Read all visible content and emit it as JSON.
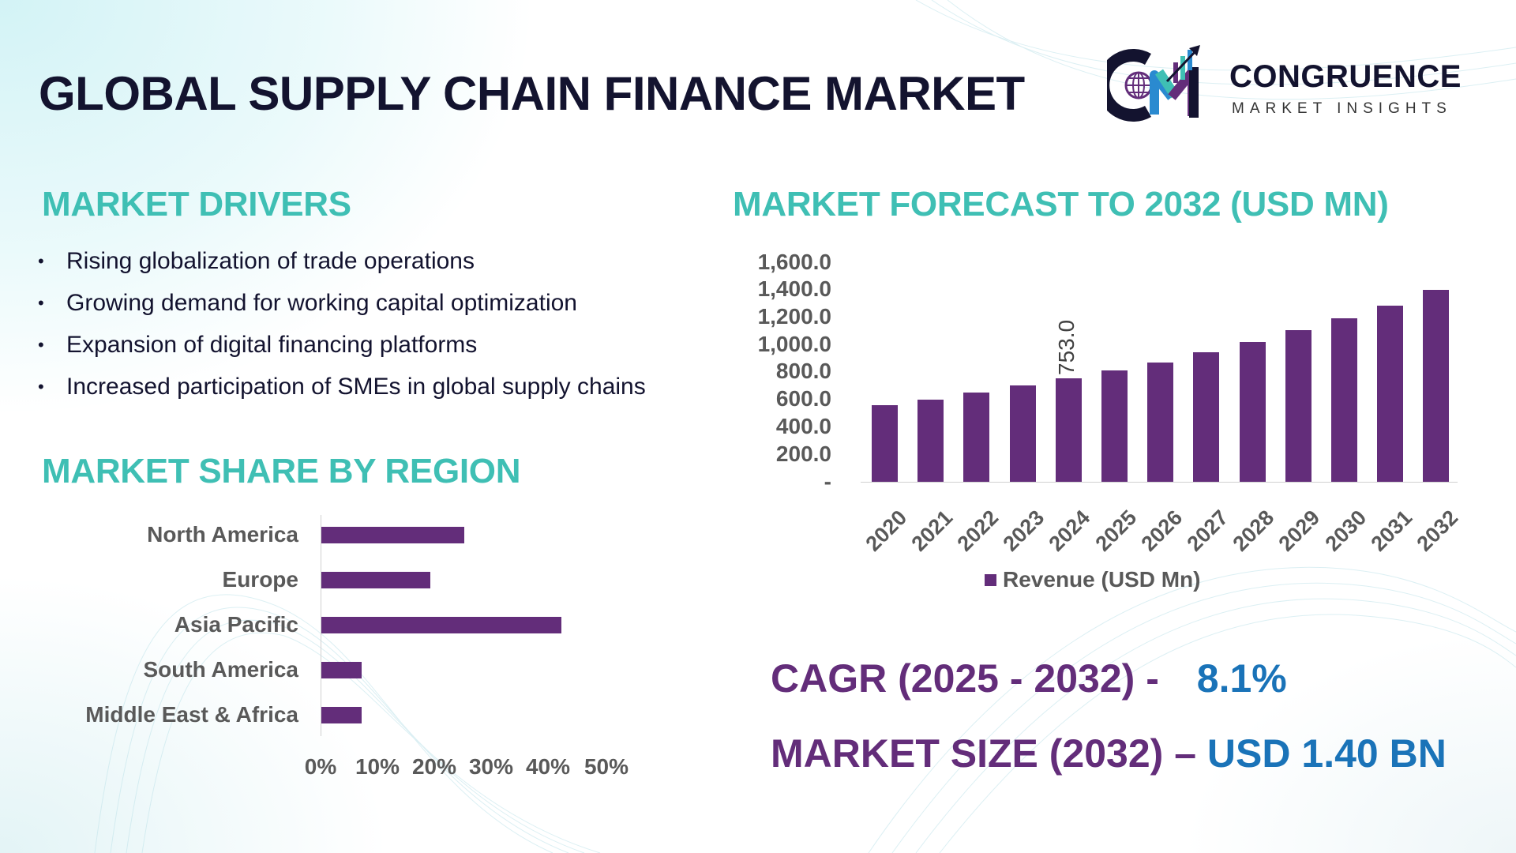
{
  "header": {
    "title": "GLOBAL SUPPLY CHAIN FINANCE MARKET",
    "logo": {
      "name": "CONGRUENCE",
      "subtitle": "MARKET INSIGHTS",
      "icon": "cm-globe-chart-logo-icon"
    }
  },
  "drivers": {
    "heading": "MARKET DRIVERS",
    "bullet": "•",
    "items": [
      "Rising globalization of trade operations",
      "Growing demand for working capital optimization",
      "Expansion of digital financing platforms",
      "Increased participation of SMEs in global supply chains"
    ]
  },
  "region": {
    "heading": "MARKET SHARE BY REGION"
  },
  "forecast": {
    "heading": "MARKET FORECAST TO 2032 (USD MN)"
  },
  "stats": {
    "cagr_label": "CAGR (2025 - 2032) -",
    "cagr_value": "8.1%",
    "size_label": "MARKET SIZE (2032) –",
    "size_value": "USD 1.40 BN"
  },
  "colors": {
    "bar": "#632d7a",
    "heading_teal": "#3fbfb4",
    "value_blue": "#1a73b8",
    "title_navy": "#13132f",
    "axis_text": "#595959"
  },
  "chart_data": [
    {
      "type": "bar",
      "title": "MARKET FORECAST TO 2032 (USD MN)",
      "categories": [
        "2020",
        "2021",
        "2022",
        "2023",
        "2024",
        "2025",
        "2026",
        "2027",
        "2028",
        "2029",
        "2030",
        "2031",
        "2032"
      ],
      "series": [
        {
          "name": "Revenue (USD Mn)",
          "values": [
            560,
            600,
            651,
            703,
            753,
            812,
            870,
            943,
            1017,
            1103,
            1189,
            1286,
            1400
          ]
        }
      ],
      "data_labels": [
        {
          "category": "2024",
          "label": "753.0"
        }
      ],
      "yticks": [
        "-",
        "200.0",
        "400.0",
        "600.0",
        "800.0",
        "1,000.0",
        "1,200.0",
        "1,400.0",
        "1,600.0"
      ],
      "ylim": [
        0,
        1600
      ],
      "xlabel": "",
      "ylabel": "",
      "legend": {
        "position": "bottom",
        "entries": [
          "Revenue (USD Mn)"
        ]
      },
      "grid": false
    },
    {
      "type": "bar",
      "orientation": "horizontal",
      "title": "MARKET SHARE BY REGION",
      "categories": [
        "North America",
        "Europe",
        "Asia Pacific",
        "South America",
        "Middle East & Africa"
      ],
      "values": [
        25,
        19,
        42,
        7,
        7
      ],
      "unit": "%",
      "xticks": [
        "0%",
        "10%",
        "20%",
        "30%",
        "40%",
        "50%"
      ],
      "xlim": [
        0,
        50
      ],
      "grid": false
    }
  ]
}
